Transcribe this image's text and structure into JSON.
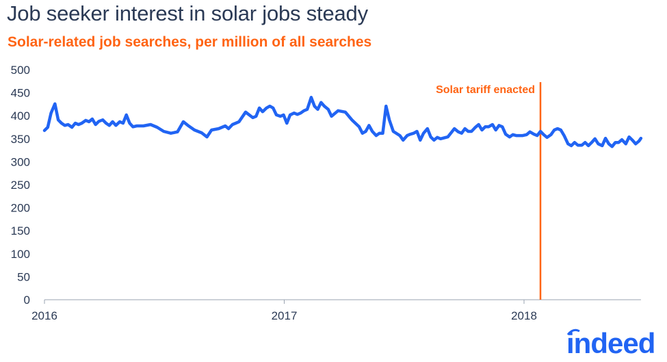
{
  "chart_data": {
    "type": "line",
    "title": "Job seeker interest in solar jobs steady",
    "subtitle": "Solar-related job searches, per million of all searches",
    "xlabel": "",
    "ylabel": "",
    "ylim": [
      0,
      500
    ],
    "xlim": [
      "2016-01-01",
      "2018-06-28"
    ],
    "yticks": [
      "0",
      "50",
      "100",
      "150",
      "200",
      "250",
      "300",
      "350",
      "400",
      "450",
      "500"
    ],
    "xticks": [
      "2016",
      "2017",
      "2018"
    ],
    "grid": false,
    "line_color": "#2164f3",
    "annotation": {
      "label": "Solar tariff enacted",
      "date": "2018-01-26",
      "color": "#ff6414"
    },
    "x": [
      "2016-01-01",
      "2016-01-06",
      "2016-01-11",
      "2016-01-17",
      "2016-01-22",
      "2016-01-27",
      "2016-02-01",
      "2016-02-06",
      "2016-02-12",
      "2016-02-17",
      "2016-02-22",
      "2016-02-27",
      "2016-03-04",
      "2016-03-09",
      "2016-03-14",
      "2016-03-19",
      "2016-03-24",
      "2016-03-30",
      "2016-04-04",
      "2016-04-09",
      "2016-04-14",
      "2016-04-19",
      "2016-04-25",
      "2016-04-30",
      "2016-05-05",
      "2016-05-10",
      "2016-05-15",
      "2016-05-21",
      "2016-05-31",
      "2016-06-11",
      "2016-06-21",
      "2016-07-01",
      "2016-07-12",
      "2016-07-22",
      "2016-07-31",
      "2016-08-07",
      "2016-08-17",
      "2016-08-28",
      "2016-09-05",
      "2016-09-12",
      "2016-09-23",
      "2016-10-03",
      "2016-10-08",
      "2016-10-14",
      "2016-10-19",
      "2016-10-24",
      "2016-11-03",
      "2016-11-14",
      "2016-11-19",
      "2016-11-24",
      "2016-11-29",
      "2016-12-05",
      "2016-12-10",
      "2016-12-15",
      "2016-12-20",
      "2016-12-26",
      "2016-12-31",
      "2017-01-05",
      "2017-01-10",
      "2017-01-16",
      "2017-01-21",
      "2017-01-26",
      "2017-01-31",
      "2017-02-05",
      "2017-02-11",
      "2017-02-16",
      "2017-02-21",
      "2017-02-26",
      "2017-03-03",
      "2017-03-09",
      "2017-03-14",
      "2017-03-19",
      "2017-03-24",
      "2017-04-04",
      "2017-04-14",
      "2017-04-25",
      "2017-04-30",
      "2017-05-05",
      "2017-05-10",
      "2017-05-15",
      "2017-05-21",
      "2017-05-26",
      "2017-05-31",
      "2017-06-05",
      "2017-06-10",
      "2017-06-16",
      "2017-06-26",
      "2017-07-01",
      "2017-07-07",
      "2017-07-12",
      "2017-07-17",
      "2017-07-22",
      "2017-07-27",
      "2017-08-01",
      "2017-08-07",
      "2017-08-12",
      "2017-08-17",
      "2017-08-22",
      "2017-08-27",
      "2017-09-07",
      "2017-09-17",
      "2017-09-23",
      "2017-09-28",
      "2017-10-03",
      "2017-10-08",
      "2017-10-13",
      "2017-10-19",
      "2017-10-24",
      "2017-10-29",
      "2017-11-03",
      "2017-11-08",
      "2017-11-14",
      "2017-11-19",
      "2017-11-24",
      "2017-11-29",
      "2017-12-04",
      "2017-12-10",
      "2017-12-15",
      "2017-12-20",
      "2017-12-25",
      "2017-12-30",
      "2018-01-05",
      "2018-01-10",
      "2018-01-16",
      "2018-01-21",
      "2018-01-26",
      "2018-01-31",
      "2018-02-05",
      "2018-02-11",
      "2018-02-16",
      "2018-02-21",
      "2018-02-26",
      "2018-03-03",
      "2018-03-09",
      "2018-03-14",
      "2018-03-19",
      "2018-03-24",
      "2018-03-30",
      "2018-04-04",
      "2018-04-09",
      "2018-04-14",
      "2018-04-19",
      "2018-04-24",
      "2018-04-30",
      "2018-05-05",
      "2018-05-10",
      "2018-05-15",
      "2018-05-20",
      "2018-05-25",
      "2018-05-30",
      "2018-06-05",
      "2018-06-10",
      "2018-06-15",
      "2018-06-20",
      "2018-06-25",
      "2018-06-28"
    ],
    "values": [
      368,
      375,
      406,
      426,
      391,
      384,
      379,
      381,
      375,
      384,
      381,
      384,
      390,
      387,
      393,
      381,
      388,
      391,
      384,
      379,
      387,
      379,
      387,
      384,
      402,
      384,
      376,
      378,
      378,
      381,
      375,
      366,
      362,
      365,
      387,
      379,
      369,
      363,
      354,
      369,
      372,
      378,
      372,
      381,
      384,
      387,
      408,
      396,
      399,
      417,
      409,
      417,
      421,
      417,
      402,
      399,
      402,
      384,
      402,
      406,
      403,
      406,
      411,
      414,
      440,
      421,
      414,
      429,
      421,
      414,
      399,
      405,
      411,
      408,
      391,
      376,
      362,
      366,
      379,
      366,
      357,
      362,
      362,
      421,
      391,
      366,
      357,
      347,
      357,
      360,
      362,
      366,
      347,
      362,
      372,
      354,
      347,
      353,
      350,
      354,
      372,
      365,
      362,
      372,
      366,
      366,
      375,
      381,
      369,
      376,
      376,
      381,
      369,
      379,
      376,
      360,
      354,
      359,
      357,
      357,
      357,
      359,
      365,
      360,
      357,
      366,
      359,
      353,
      359,
      369,
      372,
      369,
      357,
      339,
      335,
      342,
      336,
      336,
      342,
      335,
      342,
      350,
      339,
      335,
      351,
      339,
      333,
      342,
      342,
      348,
      339,
      354,
      347,
      339,
      345,
      351
    ]
  },
  "brand": {
    "logo_text": "indeed",
    "color": "#2164f3"
  }
}
